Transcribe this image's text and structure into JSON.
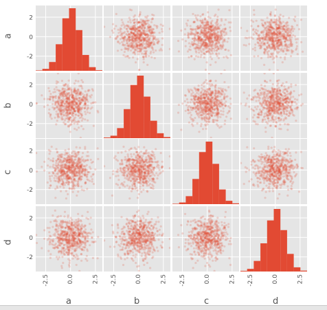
{
  "chart_data": {
    "type": "scatter_matrix",
    "variables": [
      "a",
      "b",
      "c",
      "d"
    ],
    "diagonal": "hist",
    "y_ticks": [
      "2",
      "0",
      "-2"
    ],
    "x_ticks": [
      "-2.5",
      "0.0",
      "2.5"
    ],
    "axis_range": [
      -3.5,
      3.2
    ],
    "grid": true,
    "background": "#e5e5e5",
    "marker_color": "#e24a33",
    "marker_alpha": 0.2,
    "hist_bins": [
      -3.5,
      -2.83,
      -2.16,
      -1.49,
      -0.82,
      -0.15,
      0.52,
      1.19,
      1.86,
      2.53,
      3.2
    ],
    "histograms": {
      "a": [
        2,
        9,
        41,
        124,
        245,
        292,
        190,
        74,
        17,
        3
      ],
      "b": [
        3,
        11,
        45,
        130,
        238,
        280,
        186,
        78,
        22,
        5
      ],
      "c": [
        2,
        8,
        38,
        120,
        248,
        298,
        192,
        70,
        16,
        4
      ],
      "d": [
        3,
        12,
        48,
        128,
        232,
        284,
        188,
        80,
        19,
        4
      ]
    },
    "sample_size": 1000
  }
}
